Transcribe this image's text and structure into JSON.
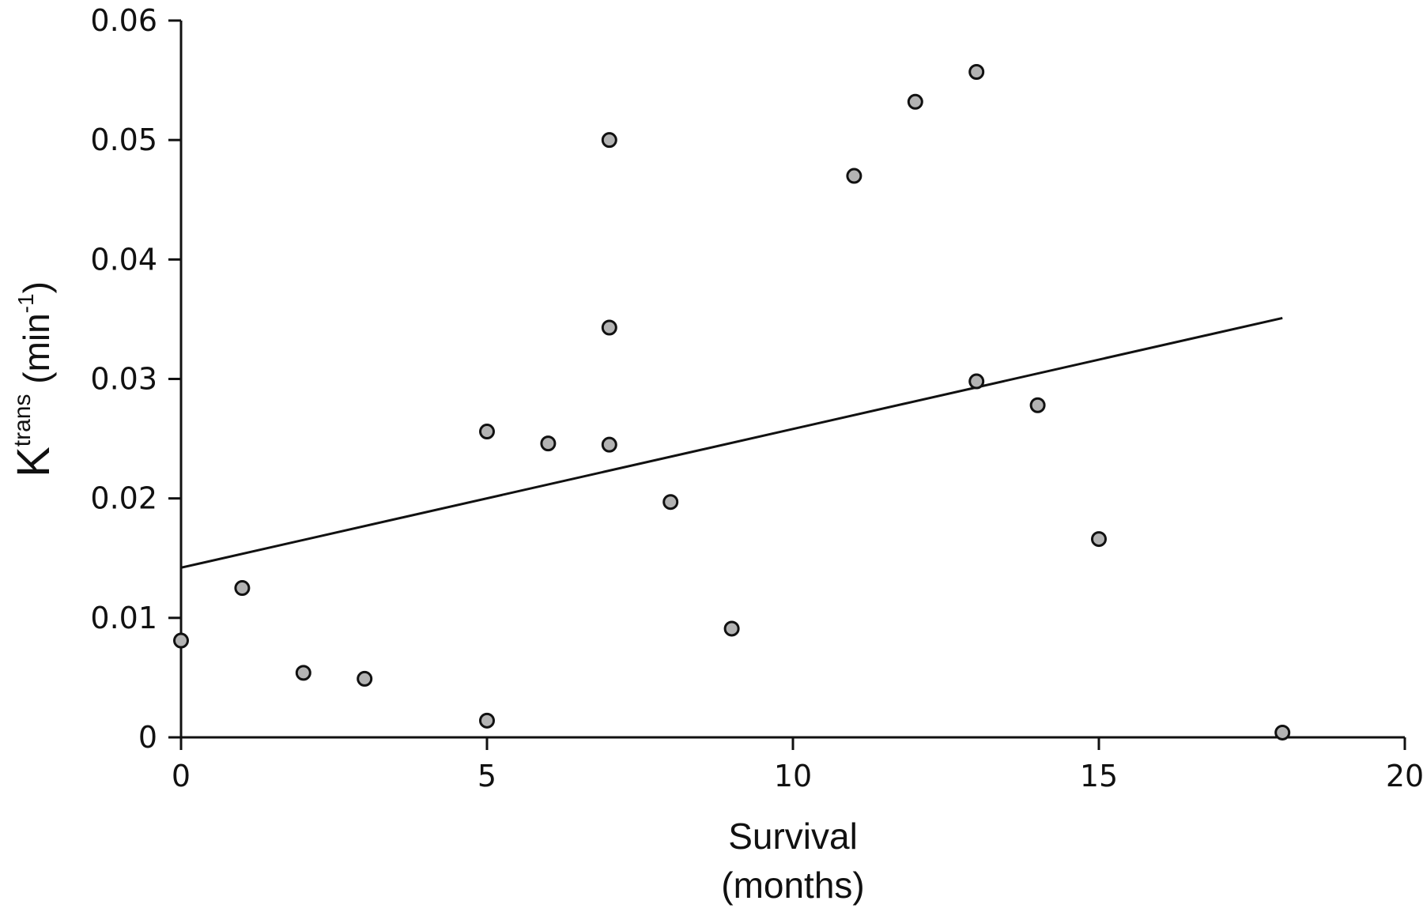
{
  "chart_data": {
    "type": "scatter",
    "xlabel_line1": "Survival",
    "xlabel_line2": "(months)",
    "ylabel_main": "K",
    "ylabel_sup": "trans",
    "ylabel_unit_open": " (min",
    "ylabel_unit_sup": "-1",
    "ylabel_unit_close": ")",
    "xlim": [
      0,
      20
    ],
    "ylim": [
      0,
      0.06
    ],
    "xticks": [
      0,
      5,
      10,
      15,
      20
    ],
    "yticks": [
      0,
      0.01,
      0.02,
      0.03,
      0.04,
      0.05,
      0.06
    ],
    "xtick_labels": [
      "0",
      "5",
      "10",
      "15",
      "20"
    ],
    "ytick_labels": [
      "0",
      "0.01",
      "0.02",
      "0.03",
      "0.04",
      "0.05",
      "0.06"
    ],
    "grid": false,
    "legend": "none",
    "points": [
      {
        "x": 0,
        "y": 0.0081
      },
      {
        "x": 1,
        "y": 0.0125
      },
      {
        "x": 2,
        "y": 0.0054
      },
      {
        "x": 3,
        "y": 0.0049
      },
      {
        "x": 5,
        "y": 0.0014
      },
      {
        "x": 5,
        "y": 0.0256
      },
      {
        "x": 6,
        "y": 0.0246
      },
      {
        "x": 7,
        "y": 0.0245
      },
      {
        "x": 7,
        "y": 0.0343
      },
      {
        "x": 7,
        "y": 0.05
      },
      {
        "x": 8,
        "y": 0.0197
      },
      {
        "x": 9,
        "y": 0.0091
      },
      {
        "x": 11,
        "y": 0.047
      },
      {
        "x": 12,
        "y": 0.0532
      },
      {
        "x": 13,
        "y": 0.0557
      },
      {
        "x": 13,
        "y": 0.0298
      },
      {
        "x": 14,
        "y": 0.0278
      },
      {
        "x": 15,
        "y": 0.0166
      },
      {
        "x": 18,
        "y": 0.0004
      }
    ],
    "trendline": {
      "x": [
        0,
        18
      ],
      "y": [
        0.0142,
        0.0351
      ]
    },
    "marker_fill": "#b3b3b3",
    "marker_stroke": "#111111",
    "line_color": "#111111"
  }
}
